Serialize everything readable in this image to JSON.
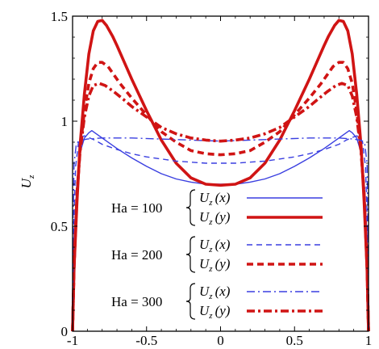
{
  "chart_data": {
    "type": "line",
    "title": "",
    "xlabel": "",
    "ylabel": "U_z",
    "ylabel_parts": {
      "main": "U",
      "sub": "z"
    },
    "xlim": [
      -1,
      1
    ],
    "ylim": [
      0,
      1.5
    ],
    "x_ticks": [
      -1,
      -0.5,
      0,
      0.5,
      1
    ],
    "x_tick_labels": [
      "-1",
      "-0.5",
      "0",
      "0.5",
      "1"
    ],
    "y_ticks": [
      0,
      0.5,
      1,
      1.5
    ],
    "y_tick_labels": [
      "0",
      "0.5",
      "1",
      "1.5"
    ],
    "grid": false,
    "legend_position": "bottom-center",
    "legend_groups": [
      {
        "label": "Ha = 100",
        "entries": [
          {
            "main": "U",
            "sub": "z",
            "arg": "x",
            "color": "#3a3fe0",
            "width": 1.4,
            "dash": ""
          },
          {
            "main": "U",
            "sub": "z",
            "arg": "y",
            "color": "#d01414",
            "width": 3.6,
            "dash": ""
          }
        ]
      },
      {
        "label": "Ha = 200",
        "entries": [
          {
            "main": "U",
            "sub": "z",
            "arg": "x",
            "color": "#3a3fe0",
            "width": 1.4,
            "dash": "7 5"
          },
          {
            "main": "U",
            "sub": "z",
            "arg": "y",
            "color": "#d01414",
            "width": 3.6,
            "dash": "8 5"
          }
        ]
      },
      {
        "label": "Ha = 300",
        "entries": [
          {
            "main": "U",
            "sub": "z",
            "arg": "x",
            "color": "#3a3fe0",
            "width": 1.4,
            "dash": "10 4 2 4"
          },
          {
            "main": "U",
            "sub": "z",
            "arg": "y",
            "color": "#d01414",
            "width": 3.6,
            "dash": "10 4 3 4"
          }
        ]
      }
    ],
    "series": [
      {
        "group": "Ha = 100",
        "arg": "x",
        "color": "#3a3fe0",
        "width": 1.4,
        "dash": "",
        "x": [
          -1,
          -0.99,
          -0.97,
          -0.95,
          -0.92,
          -0.89,
          -0.87,
          -0.8,
          -0.7,
          -0.6,
          -0.5,
          -0.4,
          -0.3,
          -0.2,
          -0.1,
          0,
          0.1,
          0.2,
          0.3,
          0.4,
          0.5,
          0.6,
          0.7,
          0.8,
          0.87,
          0.89,
          0.92,
          0.95,
          0.97,
          0.99,
          1
        ],
        "y": [
          0,
          0.45,
          0.72,
          0.85,
          0.92,
          0.945,
          0.955,
          0.92,
          0.87,
          0.825,
          0.785,
          0.75,
          0.725,
          0.71,
          0.7,
          0.7,
          0.7,
          0.71,
          0.725,
          0.75,
          0.785,
          0.825,
          0.87,
          0.92,
          0.955,
          0.945,
          0.92,
          0.85,
          0.72,
          0.45,
          0
        ]
      },
      {
        "group": "Ha = 100",
        "arg": "y",
        "color": "#d01414",
        "width": 3.6,
        "dash": "",
        "x": [
          -1,
          -0.99,
          -0.97,
          -0.95,
          -0.92,
          -0.89,
          -0.86,
          -0.83,
          -0.8,
          -0.77,
          -0.73,
          -0.7,
          -0.65,
          -0.6,
          -0.5,
          -0.4,
          -0.3,
          -0.2,
          -0.1,
          0,
          0.1,
          0.2,
          0.3,
          0.4,
          0.5,
          0.6,
          0.65,
          0.7,
          0.73,
          0.77,
          0.8,
          0.83,
          0.86,
          0.89,
          0.92,
          0.95,
          0.97,
          0.99,
          1
        ],
        "y": [
          0,
          0.3,
          0.62,
          0.88,
          1.13,
          1.32,
          1.43,
          1.475,
          1.48,
          1.455,
          1.405,
          1.36,
          1.28,
          1.2,
          1.05,
          0.91,
          0.8,
          0.73,
          0.7,
          0.695,
          0.7,
          0.73,
          0.8,
          0.91,
          1.05,
          1.2,
          1.28,
          1.36,
          1.405,
          1.455,
          1.48,
          1.475,
          1.43,
          1.32,
          1.13,
          0.88,
          0.62,
          0.3,
          0
        ]
      },
      {
        "group": "Ha = 200",
        "arg": "x",
        "color": "#3a3fe0",
        "width": 1.4,
        "dash": "7 5",
        "x": [
          -1,
          -0.995,
          -0.98,
          -0.96,
          -0.94,
          -0.92,
          -0.9,
          -0.85,
          -0.8,
          -0.7,
          -0.6,
          -0.5,
          -0.4,
          -0.3,
          -0.2,
          -0.1,
          0,
          0.1,
          0.2,
          0.3,
          0.4,
          0.5,
          0.6,
          0.7,
          0.8,
          0.85,
          0.9,
          0.92,
          0.94,
          0.96,
          0.98,
          0.995,
          1
        ],
        "y": [
          0,
          0.45,
          0.78,
          0.9,
          0.925,
          0.93,
          0.925,
          0.91,
          0.89,
          0.865,
          0.845,
          0.83,
          0.82,
          0.81,
          0.805,
          0.8,
          0.8,
          0.8,
          0.805,
          0.81,
          0.82,
          0.83,
          0.845,
          0.865,
          0.89,
          0.91,
          0.925,
          0.93,
          0.925,
          0.9,
          0.78,
          0.45,
          0
        ]
      },
      {
        "group": "Ha = 200",
        "arg": "y",
        "color": "#d01414",
        "width": 3.6,
        "dash": "8 5",
        "x": [
          -1,
          -0.99,
          -0.97,
          -0.95,
          -0.92,
          -0.89,
          -0.86,
          -0.83,
          -0.8,
          -0.76,
          -0.72,
          -0.68,
          -0.6,
          -0.5,
          -0.4,
          -0.3,
          -0.2,
          -0.1,
          0,
          0.1,
          0.2,
          0.3,
          0.4,
          0.5,
          0.6,
          0.68,
          0.72,
          0.76,
          0.8,
          0.83,
          0.86,
          0.89,
          0.92,
          0.95,
          0.97,
          0.99,
          1
        ],
        "y": [
          0,
          0.3,
          0.65,
          0.86,
          1.05,
          1.18,
          1.25,
          1.28,
          1.28,
          1.26,
          1.22,
          1.18,
          1.11,
          1.03,
          0.95,
          0.9,
          0.86,
          0.845,
          0.84,
          0.845,
          0.86,
          0.9,
          0.95,
          1.03,
          1.11,
          1.18,
          1.22,
          1.26,
          1.28,
          1.28,
          1.25,
          1.18,
          1.05,
          0.86,
          0.65,
          0.3,
          0
        ]
      },
      {
        "group": "Ha = 300",
        "arg": "x",
        "color": "#3a3fe0",
        "width": 1.4,
        "dash": "10 4 2 4",
        "x": [
          -1,
          -0.997,
          -0.99,
          -0.975,
          -0.96,
          -0.94,
          -0.9,
          -0.8,
          -0.6,
          -0.4,
          -0.2,
          0,
          0.2,
          0.4,
          0.6,
          0.8,
          0.9,
          0.94,
          0.96,
          0.975,
          0.99,
          0.997,
          1
        ],
        "y": [
          0,
          0.5,
          0.8,
          0.89,
          0.905,
          0.91,
          0.915,
          0.92,
          0.92,
          0.915,
          0.91,
          0.905,
          0.91,
          0.915,
          0.92,
          0.92,
          0.915,
          0.91,
          0.905,
          0.89,
          0.8,
          0.5,
          0
        ]
      },
      {
        "group": "Ha = 300",
        "arg": "y",
        "color": "#d01414",
        "width": 3.6,
        "dash": "10 4 3 4",
        "x": [
          -1,
          -0.99,
          -0.97,
          -0.95,
          -0.92,
          -0.89,
          -0.86,
          -0.82,
          -0.78,
          -0.72,
          -0.65,
          -0.6,
          -0.5,
          -0.4,
          -0.3,
          -0.2,
          -0.1,
          0,
          0.1,
          0.2,
          0.3,
          0.4,
          0.5,
          0.6,
          0.65,
          0.72,
          0.78,
          0.82,
          0.86,
          0.89,
          0.92,
          0.95,
          0.97,
          0.99,
          1
        ],
        "y": [
          0,
          0.32,
          0.66,
          0.85,
          1.02,
          1.12,
          1.17,
          1.18,
          1.17,
          1.14,
          1.1,
          1.07,
          1.02,
          0.97,
          0.94,
          0.92,
          0.91,
          0.905,
          0.91,
          0.92,
          0.94,
          0.97,
          1.02,
          1.07,
          1.1,
          1.14,
          1.17,
          1.18,
          1.17,
          1.12,
          1.02,
          0.85,
          0.66,
          0.32,
          0
        ]
      }
    ]
  }
}
